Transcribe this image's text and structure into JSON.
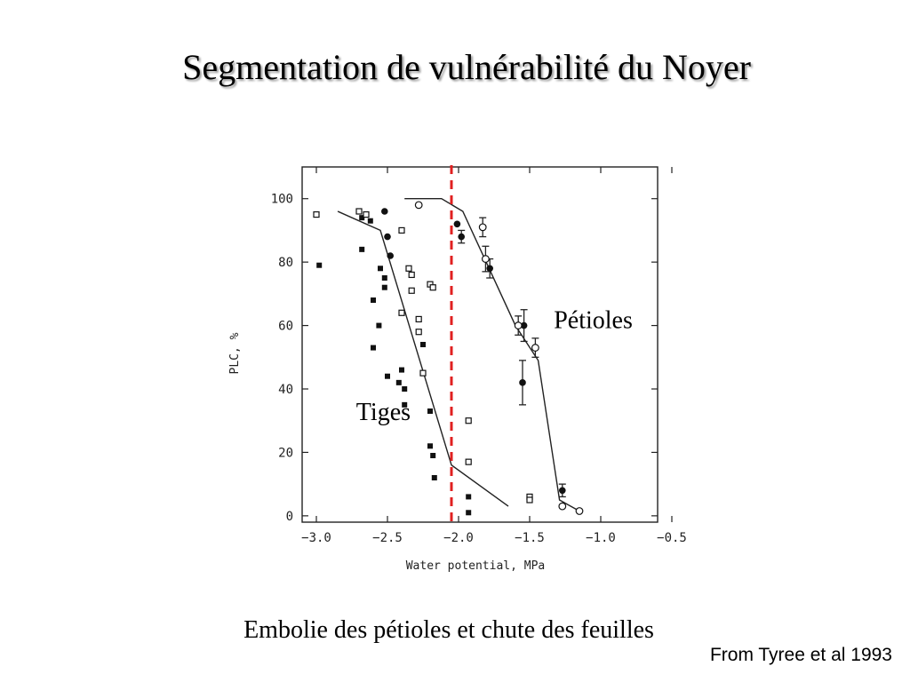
{
  "slide": {
    "title": "Segmentation de vulnérabilité du Noyer",
    "caption": "Embolie des pétioles et chute des feuilles",
    "source": "From Tyree et al 1993"
  },
  "chart_data": {
    "type": "scatter",
    "xlabel": "Water potential, MPa",
    "ylabel": "PLC, %",
    "xlim": [
      -3.1,
      -0.6
    ],
    "ylim": [
      -2,
      110
    ],
    "xticks": [
      -3.0,
      -2.5,
      -2.0,
      -1.5,
      -1.0,
      -0.5
    ],
    "xtick_labels": [
      "−3.0",
      "−2.5",
      "−2.0",
      "−1.5",
      "−1.0",
      "−0.5"
    ],
    "yticks": [
      0,
      20,
      40,
      60,
      80,
      100
    ],
    "ytick_labels": [
      "0",
      "20",
      "40",
      "60",
      "80",
      "100"
    ],
    "grid": false,
    "annotations": [
      {
        "text": "Pétioles",
        "x": -1.33,
        "y": 62
      },
      {
        "text": "Tiges",
        "x": -2.72,
        "y": 33
      }
    ],
    "reference_line": {
      "x": -2.05,
      "color": "#e02020",
      "style": "dashed"
    },
    "series": [
      {
        "marker": "filled-square",
        "points": [
          [
            -2.98,
            79
          ],
          [
            -2.68,
            94
          ],
          [
            -2.68,
            84
          ],
          [
            -2.62,
            93
          ],
          [
            -2.6,
            68
          ],
          [
            -2.6,
            53
          ],
          [
            -2.56,
            60
          ],
          [
            -2.55,
            78
          ],
          [
            -2.52,
            75
          ],
          [
            -2.52,
            72
          ],
          [
            -2.5,
            44
          ],
          [
            -2.42,
            42
          ],
          [
            -2.4,
            46
          ],
          [
            -2.38,
            40
          ],
          [
            -2.38,
            35
          ],
          [
            -2.25,
            54
          ],
          [
            -2.2,
            33
          ],
          [
            -2.2,
            22
          ],
          [
            -2.18,
            19
          ],
          [
            -2.17,
            12
          ],
          [
            -1.93,
            6
          ],
          [
            -1.93,
            1
          ]
        ]
      },
      {
        "marker": "open-square",
        "points": [
          [
            -3.0,
            95
          ],
          [
            -2.7,
            96
          ],
          [
            -2.65,
            95
          ],
          [
            -2.4,
            90
          ],
          [
            -2.35,
            78
          ],
          [
            -2.33,
            76
          ],
          [
            -2.33,
            71
          ],
          [
            -2.28,
            62
          ],
          [
            -2.28,
            58
          ],
          [
            -2.4,
            64
          ],
          [
            -2.2,
            73
          ],
          [
            -2.18,
            72
          ],
          [
            -2.25,
            45
          ],
          [
            -1.93,
            30
          ],
          [
            -1.93,
            17
          ],
          [
            -1.5,
            6
          ],
          [
            -1.5,
            5
          ]
        ]
      },
      {
        "marker": "filled-circle",
        "points": [
          [
            -2.52,
            96
          ],
          [
            -2.5,
            88
          ],
          [
            -2.48,
            82
          ],
          [
            -2.01,
            92
          ],
          [
            -1.98,
            88
          ],
          [
            -1.78,
            78
          ],
          [
            -1.54,
            60
          ],
          [
            -1.55,
            42
          ],
          [
            -1.27,
            8
          ]
        ],
        "error": [
          0,
          0,
          0,
          0,
          2,
          3,
          5,
          7,
          2
        ]
      },
      {
        "marker": "open-circle",
        "points": [
          [
            -2.28,
            98
          ],
          [
            -1.83,
            91
          ],
          [
            -1.81,
            81
          ],
          [
            -1.58,
            60
          ],
          [
            -1.46,
            53
          ],
          [
            -1.27,
            3
          ],
          [
            -1.15,
            1.5
          ]
        ],
        "error": [
          0,
          3,
          4,
          3,
          3,
          0,
          0
        ]
      },
      {
        "name": "Tiges",
        "marker": "line",
        "points": [
          [
            -2.85,
            96
          ],
          [
            -2.55,
            90
          ],
          [
            -2.05,
            16
          ],
          [
            -1.65,
            3
          ]
        ]
      },
      {
        "name": "Pétioles",
        "marker": "line",
        "points": [
          [
            -2.38,
            100
          ],
          [
            -2.12,
            100
          ],
          [
            -1.97,
            96
          ],
          [
            -1.6,
            60
          ],
          [
            -1.44,
            49
          ],
          [
            -1.29,
            5
          ],
          [
            -1.15,
            1.5
          ]
        ]
      }
    ]
  }
}
